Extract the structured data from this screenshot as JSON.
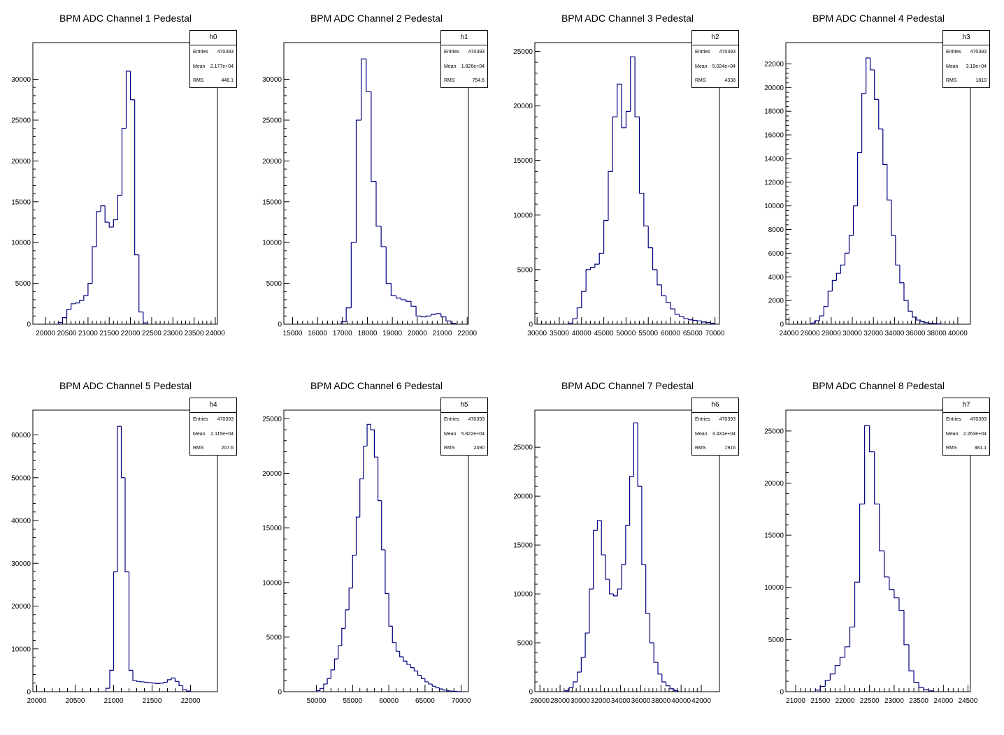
{
  "chart_data": [
    {
      "type": "histogram",
      "title": "BPM ADC Channel 1 Pedestal",
      "stats": {
        "name": "h0",
        "entries_label": "Entries",
        "entries": "470393",
        "mean_label": "Mean",
        "mean": "2.177e+04",
        "rms_label": "RMS",
        "rms": "448.1"
      },
      "xlim": [
        19700,
        24050
      ],
      "ylim": [
        0,
        34500
      ],
      "x_ticks": [
        "20000",
        "20500",
        "21000",
        "21500",
        "22000",
        "22500",
        "23000",
        "23500",
        "24000"
      ],
      "y_ticks": [
        "0",
        "5000",
        "10000",
        "15000",
        "20000",
        "25000",
        "30000"
      ],
      "x": [
        20350,
        20450,
        20550,
        20650,
        20750,
        20850,
        20950,
        21050,
        21150,
        21250,
        21350,
        21450,
        21550,
        21650,
        21750,
        21850,
        21950,
        22050,
        22150,
        22250,
        22350
      ],
      "values": [
        200,
        800,
        1800,
        2500,
        2600,
        2900,
        3500,
        5000,
        9500,
        13800,
        14500,
        12500,
        11900,
        12800,
        15800,
        24000,
        31000,
        27500,
        8500,
        1500,
        150
      ]
    },
    {
      "type": "histogram",
      "title": "BPM ADC Channel 2 Pedestal",
      "stats": {
        "name": "h1",
        "entries_label": "Entries",
        "entries": "470393",
        "mean_label": "Mean",
        "mean": "1.826e+04",
        "rms_label": "RMS",
        "rms": "754.6"
      },
      "xlim": [
        14650,
        22050
      ],
      "ylim": [
        0,
        34500
      ],
      "x_ticks": [
        "15000",
        "16000",
        "17000",
        "18000",
        "19000",
        "20000",
        "21000",
        "22000"
      ],
      "y_ticks": [
        "0",
        "5000",
        "10000",
        "15000",
        "20000",
        "25000",
        "30000"
      ],
      "x": [
        17050,
        17250,
        17450,
        17650,
        17850,
        18050,
        18250,
        18450,
        18650,
        18850,
        19050,
        19250,
        19450,
        19650,
        19850,
        20050,
        20250,
        20450,
        20650,
        20850,
        21050,
        21250,
        21450
      ],
      "values": [
        300,
        2000,
        10000,
        25000,
        32500,
        28500,
        17500,
        12000,
        9500,
        5000,
        3500,
        3200,
        3000,
        2800,
        2200,
        1000,
        900,
        1000,
        1200,
        1300,
        900,
        400,
        100
      ]
    },
    {
      "type": "histogram",
      "title": "BPM ADC Channel 3 Pedestal",
      "stats": {
        "name": "h2",
        "entries_label": "Entries",
        "entries": "470393",
        "mean_label": "Mean",
        "mean": "5.024e+04",
        "rms_label": "RMS",
        "rms": "4338"
      },
      "xlim": [
        29500,
        71000
      ],
      "ylim": [
        0,
        25800
      ],
      "x_ticks": [
        "30000",
        "35000",
        "40000",
        "45000",
        "50000",
        "55000",
        "60000",
        "65000",
        "70000"
      ],
      "y_ticks": [
        "0",
        "5000",
        "10000",
        "15000",
        "20000",
        "25000"
      ],
      "x": [
        37500,
        38500,
        39500,
        40500,
        41500,
        42500,
        43500,
        44500,
        45500,
        46500,
        47500,
        48500,
        49500,
        50500,
        51500,
        52500,
        53500,
        54500,
        55500,
        56500,
        57500,
        58500,
        59500,
        60500,
        61500,
        62500,
        63500,
        64500,
        65500,
        66500,
        67500,
        68500,
        69500
      ],
      "values": [
        100,
        500,
        1500,
        3000,
        5000,
        5200,
        5500,
        6500,
        9500,
        14000,
        19000,
        22000,
        18000,
        19500,
        24500,
        19000,
        12000,
        9000,
        7000,
        5000,
        3600,
        2600,
        2000,
        1400,
        900,
        700,
        500,
        400,
        350,
        300,
        200,
        150,
        80
      ]
    },
    {
      "type": "histogram",
      "title": "BPM ADC Channel 4 Pedestal",
      "stats": {
        "name": "h3",
        "entries_label": "Entries",
        "entries": "470393",
        "mean_label": "Mean",
        "mean": "3.19e+04",
        "rms_label": "RMS",
        "rms": "1810"
      },
      "xlim": [
        23700,
        41200
      ],
      "ylim": [
        0,
        23800
      ],
      "x_ticks": [
        "24000",
        "26000",
        "28000",
        "30000",
        "32000",
        "34000",
        "36000",
        "38000",
        "40000"
      ],
      "y_ticks": [
        "0",
        "2000",
        "4000",
        "6000",
        "8000",
        "10000",
        "12000",
        "14000",
        "16000",
        "18000",
        "20000",
        "22000"
      ],
      "x": [
        26300,
        26700,
        27100,
        27500,
        27900,
        28300,
        28700,
        29100,
        29500,
        29900,
        30300,
        30700,
        31100,
        31500,
        31900,
        32300,
        32700,
        33100,
        33500,
        33900,
        34300,
        34700,
        35100,
        35500,
        35900,
        36300,
        36700,
        37100,
        37500,
        37900,
        38300
      ],
      "values": [
        100,
        300,
        700,
        1500,
        2800,
        3700,
        4300,
        5000,
        6000,
        7500,
        10000,
        14500,
        19500,
        22500,
        21500,
        19000,
        16500,
        13500,
        10500,
        7500,
        5000,
        3500,
        2000,
        1100,
        600,
        350,
        200,
        120,
        80,
        50,
        20
      ]
    },
    {
      "type": "histogram",
      "title": "BPM ADC Channel 5 Pedestal",
      "stats": {
        "name": "h4",
        "entries_label": "Entries",
        "entries": "470393",
        "mean_label": "Mean",
        "mean": "2.115e+04",
        "rms_label": "RMS",
        "rms": "207.6"
      },
      "xlim": [
        19950,
        22350
      ],
      "ylim": [
        0,
        65800
      ],
      "x_ticks": [
        "20000",
        "20500",
        "21000",
        "21500",
        "22000"
      ],
      "y_ticks": [
        "0",
        "10000",
        "20000",
        "30000",
        "40000",
        "50000",
        "60000"
      ],
      "x": [
        20925,
        20975,
        21025,
        21075,
        21125,
        21175,
        21225,
        21275,
        21325,
        21375,
        21425,
        21475,
        21525,
        21575,
        21625,
        21675,
        21725,
        21775,
        21825,
        21875,
        21925,
        21975
      ],
      "values": [
        800,
        5000,
        28000,
        62000,
        50000,
        28000,
        5000,
        2600,
        2400,
        2300,
        2200,
        2100,
        2000,
        1900,
        2000,
        2200,
        2800,
        3200,
        2400,
        1400,
        500,
        150
      ]
    },
    {
      "type": "histogram",
      "title": "BPM ADC Channel 6 Pedestal",
      "stats": {
        "name": "h5",
        "entries_label": "Entries",
        "entries": "470393",
        "mean_label": "Mean",
        "mean": "5.822e+04",
        "rms_label": "RMS",
        "rms": "2490"
      },
      "xlim": [
        45500,
        71000
      ],
      "ylim": [
        0,
        25800
      ],
      "x_ticks": [
        "50000",
        "55000",
        "60000",
        "65000",
        "70000"
      ],
      "y_ticks": [
        "0",
        "5000",
        "10000",
        "15000",
        "20000",
        "25000"
      ],
      "x": [
        50250,
        50750,
        51250,
        51750,
        52250,
        52750,
        53250,
        53750,
        54250,
        54750,
        55250,
        55750,
        56250,
        56750,
        57250,
        57750,
        58250,
        58750,
        59250,
        59750,
        60250,
        60750,
        61250,
        61750,
        62250,
        62750,
        63250,
        63750,
        64250,
        64750,
        65250,
        65750,
        66250,
        66750,
        67250,
        67750,
        68250,
        68750,
        69250,
        69750
      ],
      "values": [
        100,
        300,
        700,
        1200,
        2000,
        3000,
        4200,
        5800,
        7500,
        9500,
        12500,
        16000,
        19500,
        22500,
        24500,
        24000,
        21500,
        17500,
        13000,
        9000,
        6000,
        4500,
        3700,
        3200,
        2800,
        2500,
        2200,
        1900,
        1500,
        1200,
        900,
        700,
        500,
        350,
        250,
        150,
        80,
        50,
        30,
        10
      ]
    },
    {
      "type": "histogram",
      "title": "BPM ADC Channel 7 Pedestal",
      "stats": {
        "name": "h6",
        "entries_label": "Entries",
        "entries": "470393",
        "mean_label": "Mean",
        "mean": "3.431e+04",
        "rms_label": "RMS",
        "rms": "1916"
      },
      "xlim": [
        25500,
        43800
      ],
      "ylim": [
        0,
        28800
      ],
      "x_ticks": [
        "26000",
        "28000",
        "30000",
        "32000",
        "34000",
        "36000",
        "38000",
        "40000",
        "42000"
      ],
      "y_ticks": [
        "0",
        "5000",
        "10000",
        "15000",
        "20000",
        "25000"
      ],
      "x": [
        28700,
        29100,
        29500,
        29900,
        30300,
        30700,
        31100,
        31500,
        31900,
        32300,
        32700,
        33100,
        33500,
        33900,
        34300,
        34700,
        35100,
        35500,
        35900,
        36300,
        36700,
        37100,
        37500,
        37900,
        38300,
        38700,
        39100,
        39500
      ],
      "values": [
        100,
        400,
        1000,
        2000,
        3500,
        6000,
        10500,
        16500,
        17500,
        14000,
        11500,
        10000,
        9800,
        10500,
        13000,
        17000,
        22000,
        27500,
        21000,
        13000,
        8000,
        5000,
        3000,
        1800,
        1000,
        600,
        300,
        100
      ]
    },
    {
      "type": "histogram",
      "title": "BPM ADC Channel 8 Pedestal",
      "stats": {
        "name": "h7",
        "entries_label": "Entries",
        "entries": "470393",
        "mean_label": "Mean",
        "mean": "2.263e+04",
        "rms_label": "RMS",
        "rms": "381.1"
      },
      "xlim": [
        20800,
        24550
      ],
      "ylim": [
        0,
        27000
      ],
      "x_ticks": [
        "21000",
        "21500",
        "22000",
        "22500",
        "23000",
        "23500",
        "24000",
        "24500"
      ],
      "y_ticks": [
        "0",
        "5000",
        "10000",
        "15000",
        "20000",
        "25000"
      ],
      "x": [
        21450,
        21550,
        21650,
        21750,
        21850,
        21950,
        22050,
        22150,
        22250,
        22350,
        22450,
        22550,
        22650,
        22750,
        22850,
        22950,
        23050,
        23150,
        23250,
        23350,
        23450,
        23550,
        23650,
        23750
      ],
      "values": [
        150,
        500,
        1100,
        1700,
        2500,
        3300,
        4300,
        6200,
        10500,
        18000,
        25500,
        23000,
        18000,
        13500,
        11000,
        9800,
        9000,
        7800,
        4500,
        2000,
        900,
        400,
        200,
        80
      ]
    }
  ]
}
